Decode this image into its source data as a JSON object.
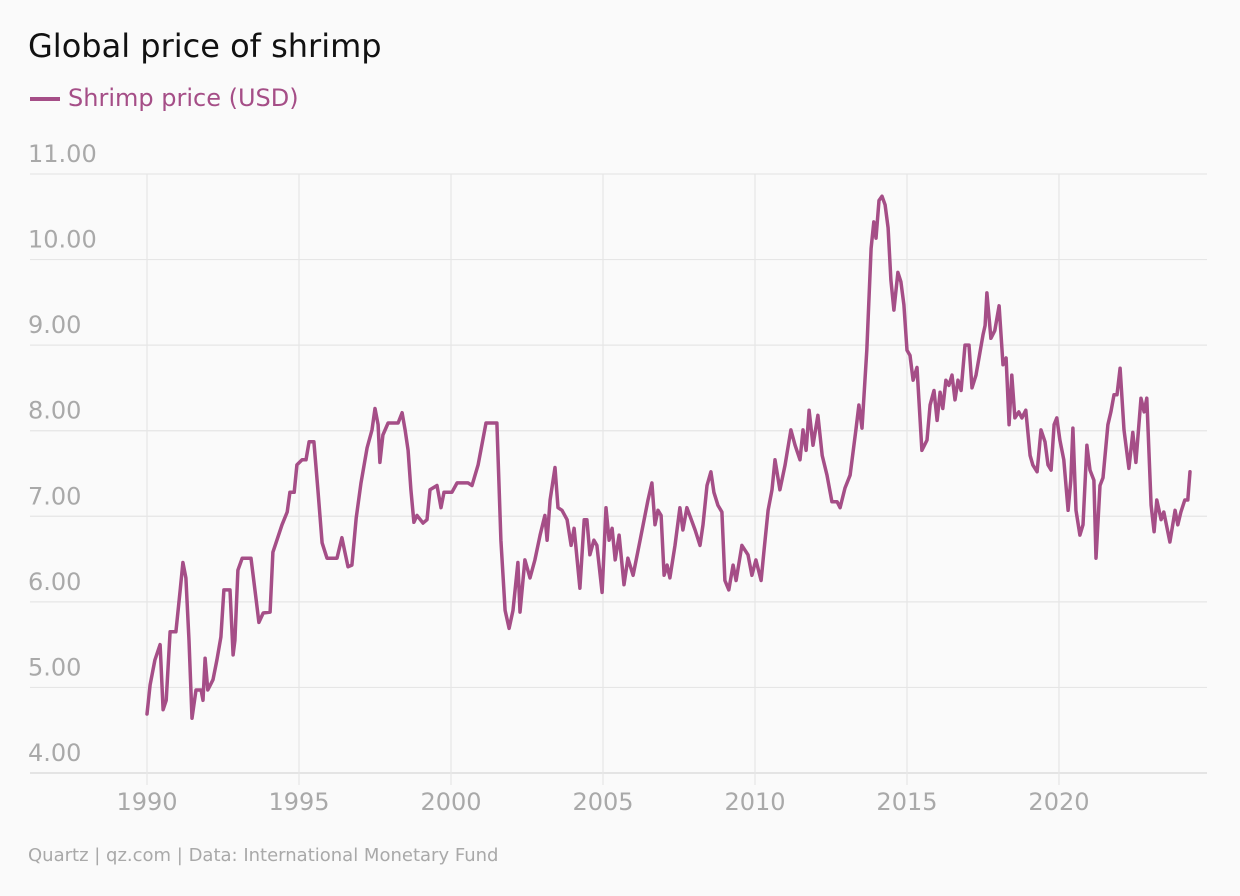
{
  "chart_data": {
    "type": "line",
    "title": "Global price of shrimp",
    "source": "Quartz | qz.com | Data: International Monetary Fund",
    "xlim": [
      1986.15,
      2024.87
    ],
    "ylim": [
      4,
      11
    ],
    "xticks": [
      1990,
      1995,
      2000,
      2005,
      2010,
      2015,
      2020
    ],
    "yticks": [
      {
        "value": 4,
        "label": "4.00"
      },
      {
        "value": 5,
        "label": "5.00"
      },
      {
        "value": 6,
        "label": "6.00"
      },
      {
        "value": 7,
        "label": "7.00"
      },
      {
        "value": 8,
        "label": "8.00"
      },
      {
        "value": 9,
        "label": "9.00"
      },
      {
        "value": 10,
        "label": "10.00"
      },
      {
        "value": 11,
        "label": "11.00"
      }
    ],
    "grid": true,
    "legend": "top-left",
    "x": [
      1990.0,
      1990.1,
      1990.26,
      1990.43,
      1990.53,
      1990.63,
      1990.76,
      1990.95,
      1991.09,
      1991.18,
      1991.28,
      1991.38,
      1991.48,
      1991.61,
      1991.78,
      1991.84,
      1991.91,
      1992.0,
      1992.17,
      1992.3,
      1992.43,
      1992.53,
      1992.73,
      1992.83,
      1992.89,
      1992.99,
      1993.13,
      1993.42,
      1993.59,
      1993.68,
      1993.82,
      1994.05,
      1994.14,
      1994.44,
      1994.61,
      1994.7,
      1994.84,
      1994.93,
      1995.1,
      1995.23,
      1995.33,
      1995.49,
      1995.62,
      1995.76,
      1995.92,
      1996.25,
      1996.41,
      1996.51,
      1996.61,
      1996.74,
      1996.88,
      1997.04,
      1997.24,
      1997.4,
      1997.5,
      1997.6,
      1997.66,
      1997.76,
      1997.93,
      1998.26,
      1998.39,
      1998.49,
      1998.59,
      1998.68,
      1998.78,
      1998.88,
      1999.08,
      1999.21,
      1999.31,
      1999.54,
      1999.67,
      1999.77,
      2000.03,
      2000.2,
      2000.56,
      2000.69,
      2000.89,
      2001.15,
      2001.51,
      2001.64,
      2001.78,
      2001.91,
      2002.04,
      2002.2,
      2002.27,
      2002.43,
      2002.6,
      2002.76,
      2002.93,
      2003.09,
      2003.16,
      2003.26,
      2003.42,
      2003.52,
      2003.65,
      2003.82,
      2003.95,
      2004.05,
      2004.24,
      2004.38,
      2004.47,
      2004.57,
      2004.7,
      2004.8,
      2004.97,
      2005.1,
      2005.2,
      2005.3,
      2005.4,
      2005.53,
      2005.69,
      2005.82,
      2005.99,
      2006.22,
      2006.48,
      2006.61,
      2006.71,
      2006.81,
      2006.91,
      2007.01,
      2007.11,
      2007.2,
      2007.37,
      2007.53,
      2007.63,
      2007.76,
      2008.03,
      2008.19,
      2008.29,
      2008.42,
      2008.55,
      2008.65,
      2008.78,
      2008.91,
      2009.01,
      2009.14,
      2009.28,
      2009.38,
      2009.57,
      2009.77,
      2009.9,
      2010.03,
      2010.2,
      2010.3,
      2010.43,
      2010.56,
      2010.66,
      2010.82,
      2010.99,
      2011.18,
      2011.32,
      2011.48,
      2011.58,
      2011.68,
      2011.78,
      2011.91,
      2012.07,
      2012.21,
      2012.37,
      2012.53,
      2012.7,
      2012.8,
      2012.96,
      2013.13,
      2013.32,
      2013.42,
      2013.52,
      2013.68,
      2013.82,
      2013.91,
      2013.98,
      2014.08,
      2014.18,
      2014.28,
      2014.38,
      2014.47,
      2014.57,
      2014.7,
      2014.8,
      2014.9,
      2015.0,
      2015.1,
      2015.2,
      2015.33,
      2015.49,
      2015.66,
      2015.76,
      2015.89,
      2015.99,
      2016.09,
      2016.18,
      2016.28,
      2016.38,
      2016.48,
      2016.58,
      2016.68,
      2016.78,
      2016.91,
      2017.04,
      2017.14,
      2017.27,
      2017.5,
      2017.57,
      2017.63,
      2017.76,
      2017.89,
      2018.03,
      2018.16,
      2018.26,
      2018.36,
      2018.45,
      2018.55,
      2018.68,
      2018.78,
      2018.91,
      2019.05,
      2019.14,
      2019.28,
      2019.41,
      2019.54,
      2019.64,
      2019.74,
      2019.84,
      2019.93,
      2020.03,
      2020.16,
      2020.3,
      2020.39,
      2020.46,
      2020.56,
      2020.69,
      2020.79,
      2020.92,
      2021.02,
      2021.15,
      2021.22,
      2021.35,
      2021.45,
      2021.61,
      2021.71,
      2021.81,
      2021.91,
      2022.01,
      2022.14,
      2022.3,
      2022.43,
      2022.53,
      2022.7,
      2022.8,
      2022.89,
      2023.03,
      2023.13,
      2023.22,
      2023.36,
      2023.45,
      2023.65,
      2023.82,
      2023.91,
      2024.01,
      2024.14,
      2024.24,
      2024.31
    ],
    "series": [
      {
        "name": "Shrimp price (USD)",
        "color": "#a54e87",
        "values": [
          4.69,
          5.03,
          5.32,
          5.5,
          4.74,
          4.85,
          5.65,
          5.65,
          6.14,
          6.46,
          6.28,
          5.55,
          4.64,
          4.97,
          4.97,
          4.85,
          5.34,
          4.97,
          5.09,
          5.32,
          5.59,
          6.14,
          6.14,
          5.38,
          5.55,
          6.37,
          6.51,
          6.51,
          6.02,
          5.76,
          5.87,
          5.88,
          6.58,
          6.9,
          7.05,
          7.28,
          7.28,
          7.6,
          7.66,
          7.66,
          7.87,
          7.87,
          7.31,
          6.69,
          6.51,
          6.51,
          6.75,
          6.58,
          6.41,
          6.43,
          6.98,
          7.39,
          7.8,
          8.01,
          8.26,
          8.07,
          7.63,
          7.95,
          8.09,
          8.09,
          8.21,
          8.01,
          7.77,
          7.31,
          6.93,
          7.01,
          6.92,
          6.96,
          7.31,
          7.36,
          7.1,
          7.28,
          7.28,
          7.39,
          7.39,
          7.36,
          7.6,
          8.09,
          8.09,
          6.72,
          5.9,
          5.69,
          5.9,
          6.46,
          5.88,
          6.49,
          6.28,
          6.49,
          6.78,
          7.01,
          6.72,
          7.19,
          7.57,
          7.1,
          7.07,
          6.96,
          6.66,
          6.86,
          6.16,
          6.96,
          6.96,
          6.55,
          6.72,
          6.66,
          6.11,
          7.1,
          6.72,
          6.86,
          6.49,
          6.78,
          6.2,
          6.51,
          6.31,
          6.72,
          7.19,
          7.39,
          6.9,
          7.07,
          7.01,
          6.31,
          6.43,
          6.28,
          6.66,
          7.1,
          6.84,
          7.1,
          6.84,
          6.66,
          6.9,
          7.36,
          7.52,
          7.28,
          7.13,
          7.05,
          6.25,
          6.14,
          6.43,
          6.25,
          6.66,
          6.55,
          6.31,
          6.49,
          6.25,
          6.61,
          7.07,
          7.31,
          7.66,
          7.31,
          7.6,
          8.01,
          7.83,
          7.66,
          8.01,
          7.77,
          8.24,
          7.83,
          8.18,
          7.71,
          7.48,
          7.17,
          7.17,
          7.1,
          7.33,
          7.48,
          8.01,
          8.3,
          8.03,
          8.94,
          10.13,
          10.44,
          10.25,
          10.69,
          10.74,
          10.64,
          10.37,
          9.76,
          9.41,
          9.85,
          9.74,
          9.47,
          8.94,
          8.88,
          8.59,
          8.74,
          7.77,
          7.89,
          8.3,
          8.47,
          8.12,
          8.45,
          8.26,
          8.59,
          8.53,
          8.65,
          8.36,
          8.59,
          8.47,
          9.0,
          9.0,
          8.5,
          8.65,
          9.12,
          9.23,
          9.61,
          9.08,
          9.17,
          9.46,
          8.77,
          8.85,
          8.07,
          8.65,
          8.15,
          8.22,
          8.15,
          8.24,
          7.71,
          7.6,
          7.52,
          8.01,
          7.87,
          7.6,
          7.54,
          8.07,
          8.15,
          7.89,
          7.66,
          7.07,
          7.42,
          8.03,
          7.07,
          6.78,
          6.9,
          7.83,
          7.54,
          7.42,
          6.51,
          7.36,
          7.45,
          8.07,
          8.22,
          8.42,
          8.42,
          8.73,
          8.01,
          7.56,
          7.98,
          7.63,
          8.38,
          8.22,
          8.38,
          7.13,
          6.82,
          7.19,
          6.96,
          7.05,
          6.7,
          7.07,
          6.9,
          7.05,
          7.19,
          7.19,
          7.52
        ]
      }
    ]
  }
}
